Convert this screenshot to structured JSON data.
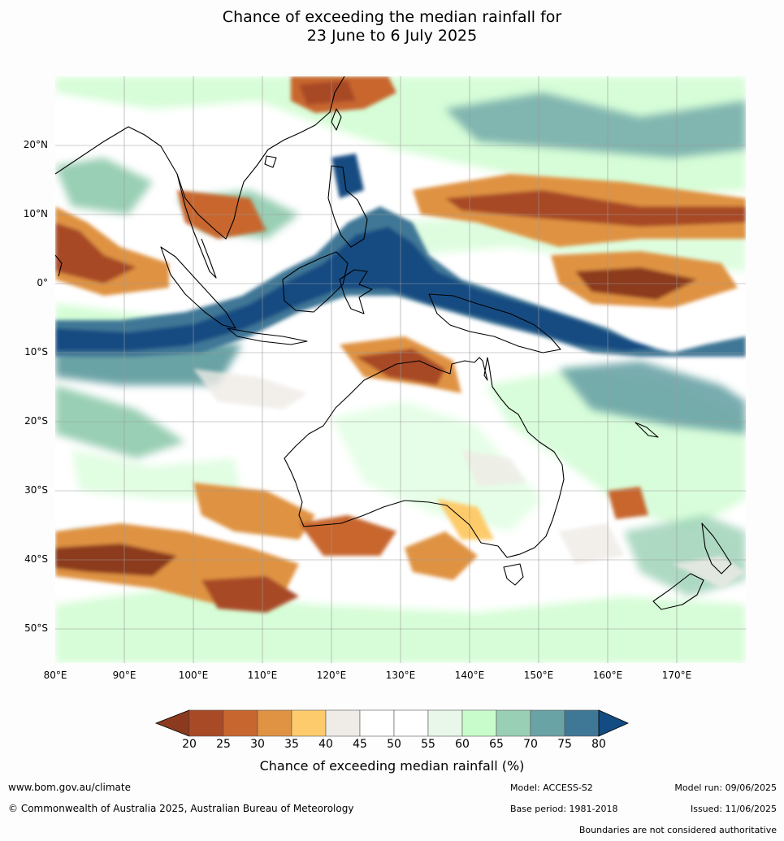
{
  "header": {
    "title_line1": "Chance of exceeding the median rainfall for",
    "title_line2": "23 June to 6 July 2025"
  },
  "map": {
    "lon_labels": [
      "80°E",
      "90°E",
      "100°E",
      "110°E",
      "120°E",
      "130°E",
      "140°E",
      "150°E",
      "160°E",
      "170°E"
    ],
    "lat_labels": [
      "20°N",
      "10°N",
      "0°",
      "10°S",
      "20°S",
      "30°S",
      "40°S",
      "50°S"
    ],
    "lon_range": [
      80,
      180
    ],
    "lat_range": [
      -55,
      30
    ],
    "gridlines": true
  },
  "colorbar": {
    "tick_labels": [
      "20",
      "25",
      "30",
      "35",
      "40",
      "45",
      "50",
      "55",
      "60",
      "65",
      "70",
      "75",
      "80"
    ],
    "colors": [
      "#8c3a1f",
      "#a84a26",
      "#c8662f",
      "#df9343",
      "#fdcb6b",
      "#efebe6",
      "#ffffff",
      "#ffffff",
      "#e9f6ea",
      "#c8fcca",
      "#99cfb4",
      "#6aa3a5",
      "#3f7796",
      "#124c82"
    ],
    "label": "Chance of exceeding median rainfall (%)"
  },
  "footer": {
    "website": "www.bom.gov.au/climate",
    "copyright": "© Commonwealth of Australia 2025, Australian Bureau of Meteorology",
    "model": "Model: ACCESS-S2",
    "base_period": "Base period: 1981-2018",
    "model_run": "Model run: 09/06/2025",
    "issued": "Issued: 11/06/2025",
    "disclaimer": "Boundaries are not considered authoritative"
  }
}
